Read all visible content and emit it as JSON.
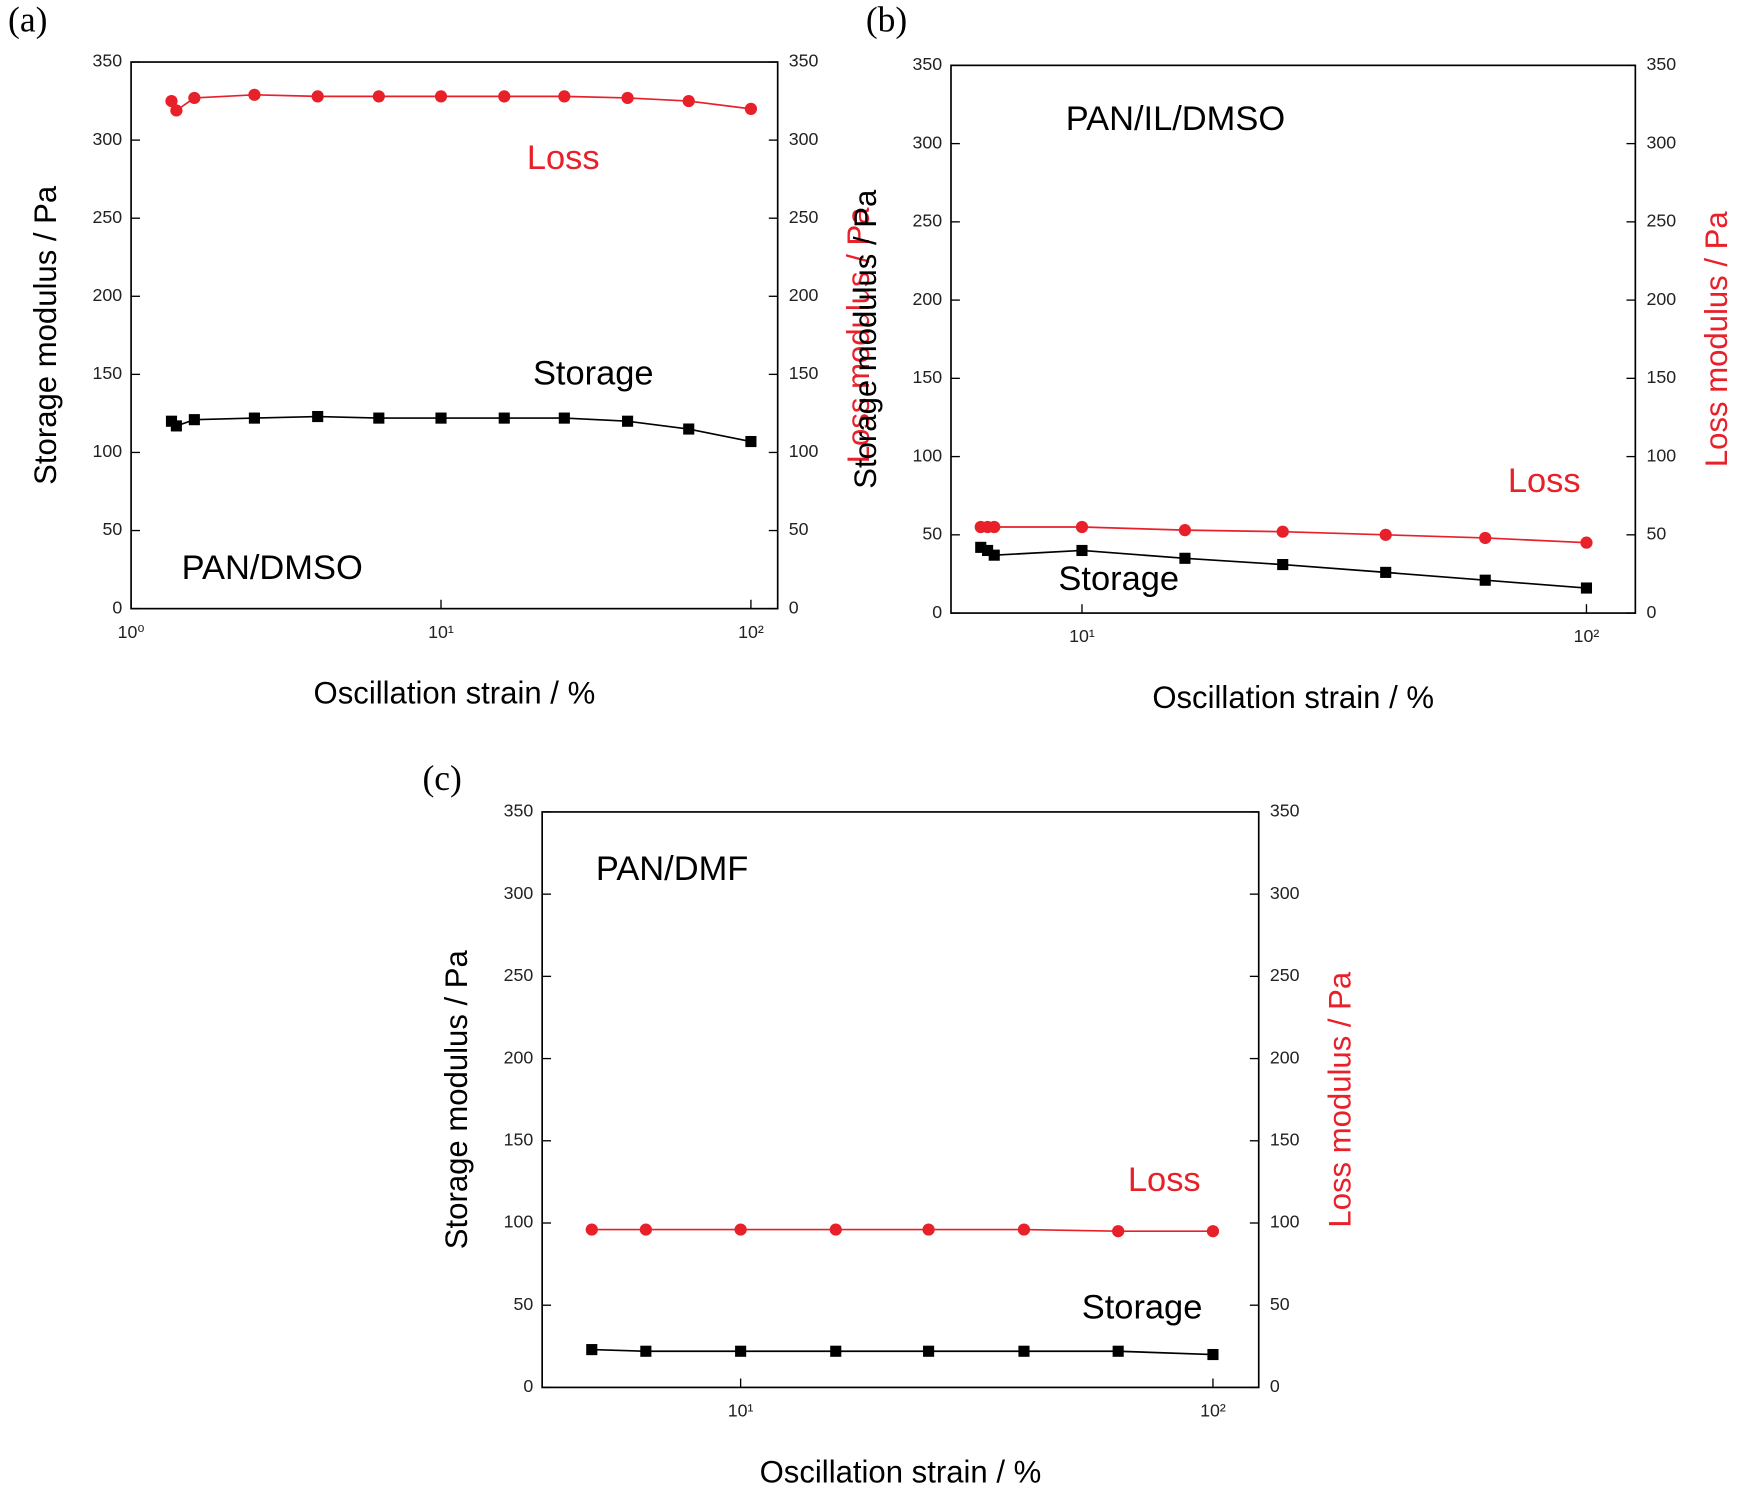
{
  "chart_data": [
    {
      "type": "line",
      "panel_label": "(a)",
      "annotation": "PAN/DMSO",
      "x_label": "Oscillation strain / %",
      "y_label": "Storage modulus / Pa",
      "y2_label": "Loss modulus / Pa",
      "log_x": true,
      "x": [
        1.35,
        1.4,
        1.6,
        2.5,
        4,
        6.3,
        10,
        16,
        25,
        40,
        63,
        100
      ],
      "xlim": [
        1,
        122
      ],
      "xticks": [
        {
          "value": 1,
          "label": "10⁰"
        },
        {
          "value": 10,
          "label": "10¹"
        },
        {
          "value": 100,
          "label": "10²"
        }
      ],
      "ylim": [
        0,
        350
      ],
      "yticks": [
        0,
        50,
        100,
        150,
        200,
        250,
        300,
        350
      ],
      "y2lim": [
        0,
        350
      ],
      "y2ticks": [
        0,
        50,
        100,
        150,
        200,
        250,
        300,
        350
      ],
      "series": [
        {
          "name": "Storage",
          "color": "#000000",
          "marker": "square",
          "values": [
            120,
            117,
            121,
            122,
            123,
            122,
            122,
            122,
            122,
            120,
            115,
            107
          ]
        },
        {
          "name": "Loss",
          "color": "#e8202a",
          "marker": "circle",
          "axis": "y2",
          "values": [
            325,
            319,
            327,
            329,
            328,
            328,
            328,
            328,
            328,
            327,
            325,
            320
          ]
        }
      ]
    },
    {
      "type": "line",
      "panel_label": "(b)",
      "annotation": "PAN/IL/DMSO",
      "x_label": "Oscillation strain / %",
      "y_label": "Storage modulus / Pa",
      "y2_label": "Loss modulus / Pa",
      "log_x": true,
      "x": [
        6.3,
        6.5,
        6.7,
        10,
        16,
        25,
        40,
        63,
        100
      ],
      "xlim": [
        5.5,
        125
      ],
      "xticks": [
        {
          "value": 10,
          "label": "10¹"
        },
        {
          "value": 100,
          "label": "10²"
        }
      ],
      "ylim": [
        0,
        350
      ],
      "yticks": [
        0,
        50,
        100,
        150,
        200,
        250,
        300,
        350
      ],
      "y2lim": [
        0,
        350
      ],
      "y2ticks": [
        0,
        50,
        100,
        150,
        200,
        250,
        300,
        350
      ],
      "series": [
        {
          "name": "Storage",
          "color": "#000000",
          "marker": "square",
          "values": [
            42,
            40,
            37,
            40,
            35,
            31,
            26,
            21,
            16
          ]
        },
        {
          "name": "Loss",
          "color": "#e8202a",
          "marker": "circle",
          "axis": "y2",
          "values": [
            55,
            55,
            55,
            55,
            53,
            52,
            50,
            48,
            45
          ]
        }
      ]
    },
    {
      "type": "line",
      "panel_label": "(c)",
      "annotation": "PAN/DMF",
      "x_label": "Oscillation strain / %",
      "y_label": "Storage modulus / Pa",
      "y2_label": "Loss modulus / Pa",
      "log_x": true,
      "x": [
        4.84,
        6.3,
        10,
        15.9,
        25,
        39.8,
        63,
        100
      ],
      "xlim": [
        3.8,
        125
      ],
      "xticks": [
        {
          "value": 10,
          "label": "10¹"
        },
        {
          "value": 100,
          "label": "10²"
        }
      ],
      "ylim": [
        0,
        350
      ],
      "yticks": [
        0,
        50,
        100,
        150,
        200,
        250,
        300,
        350
      ],
      "y2lim": [
        0,
        350
      ],
      "y2ticks": [
        0,
        50,
        100,
        150,
        200,
        250,
        300,
        350
      ],
      "series": [
        {
          "name": "Storage",
          "color": "#000000",
          "marker": "square",
          "values": [
            23,
            22,
            22,
            22,
            22,
            22,
            22,
            20
          ]
        },
        {
          "name": "Loss",
          "color": "#e8202a",
          "marker": "circle",
          "axis": "y2",
          "values": [
            96,
            96,
            96,
            96,
            96,
            96,
            95,
            95
          ]
        }
      ]
    }
  ]
}
